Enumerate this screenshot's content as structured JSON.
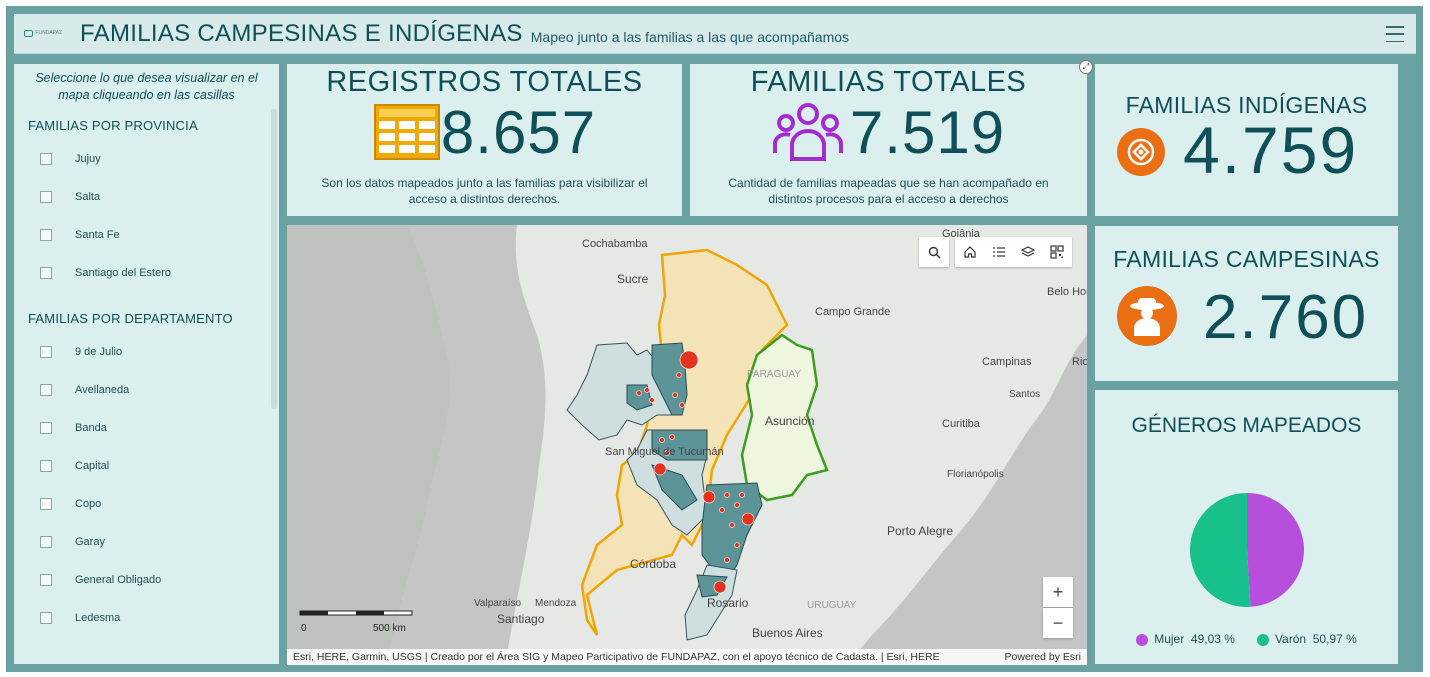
{
  "header": {
    "logo_text": "FUNDAPAZ",
    "title": "FAMILIAS CAMPESINAS E INDÍGENAS",
    "subtitle": "Mapeo junto a las familias a las que acompañamos"
  },
  "sidebar": {
    "intro": "Seleccione lo que desea visualizar en el mapa cliqueando en las casillas",
    "section1": "FAMILIAS POR PROVINCIA",
    "provincias": [
      "Jujuy",
      "Salta",
      "Santa Fe",
      "Santiago del Estero"
    ],
    "section2": "FAMILIAS POR DEPARTAMENTO",
    "departamentos": [
      "9 de Julio",
      "Avellaneda",
      "Banda",
      "Capital",
      "Copo",
      "Garay",
      "General Obligado",
      "Ledesma"
    ]
  },
  "kpis": {
    "registros": {
      "title": "REGISTROS TOTALES",
      "value": "8.657",
      "desc": "Son los datos mapeados junto a las familias para visibilizar el acceso a distintos derechos."
    },
    "familias": {
      "title": "FAMILIAS TOTALES",
      "value": "7.519",
      "desc": "Cantidad de familias mapeadas que se han acompañado en distintos procesos para el acceso a derechos"
    },
    "indigenas": {
      "title": "FAMILIAS INDÍGENAS",
      "value": "4.759"
    },
    "campesinas": {
      "title": "FAMILIAS CAMPESINAS",
      "value": "2.760"
    }
  },
  "generos": {
    "title": "GÉNEROS MAPEADOS",
    "mujer_label": "Mujer",
    "mujer_pct": "49,03 %",
    "mujer_value": 49.03,
    "varon_label": "Varón",
    "varon_pct": "50,97 %",
    "varon_value": 50.97,
    "mujer_color": "#b74fdc",
    "varon_color": "#18c08c"
  },
  "map": {
    "labels": [
      "Cochabamba",
      "Goiânia",
      "Sucre",
      "Campo Grande",
      "Belo Horizonte",
      "Campinas",
      "Rio de Janeiro",
      "Santos",
      "PARAGUAY",
      "Asunción",
      "Curitiba",
      "San Miguel de Tucumán",
      "Florianópolis",
      "Porto Alegre",
      "Córdoba",
      "Valparaíso",
      "Mendoza",
      "Santiago",
      "URUGUAY",
      "Rosario",
      "Buenos Aires"
    ],
    "scale_left": "0",
    "scale_right": "500 km",
    "attribution": "Esri, HERE, Garmin, USGS | Creado por el Área SIG y Mapeo Participativo de FUNDAPAZ, con el apoyo técnico de Cadasta. | Esri, HERE",
    "powered": "Powered by Esri",
    "zoom_in": "+",
    "zoom_out": "−"
  },
  "icons": {
    "search": "search-icon",
    "home": "home-icon",
    "list": "legend-list-icon",
    "layers": "layers-icon",
    "qr": "qr-code-icon"
  }
}
